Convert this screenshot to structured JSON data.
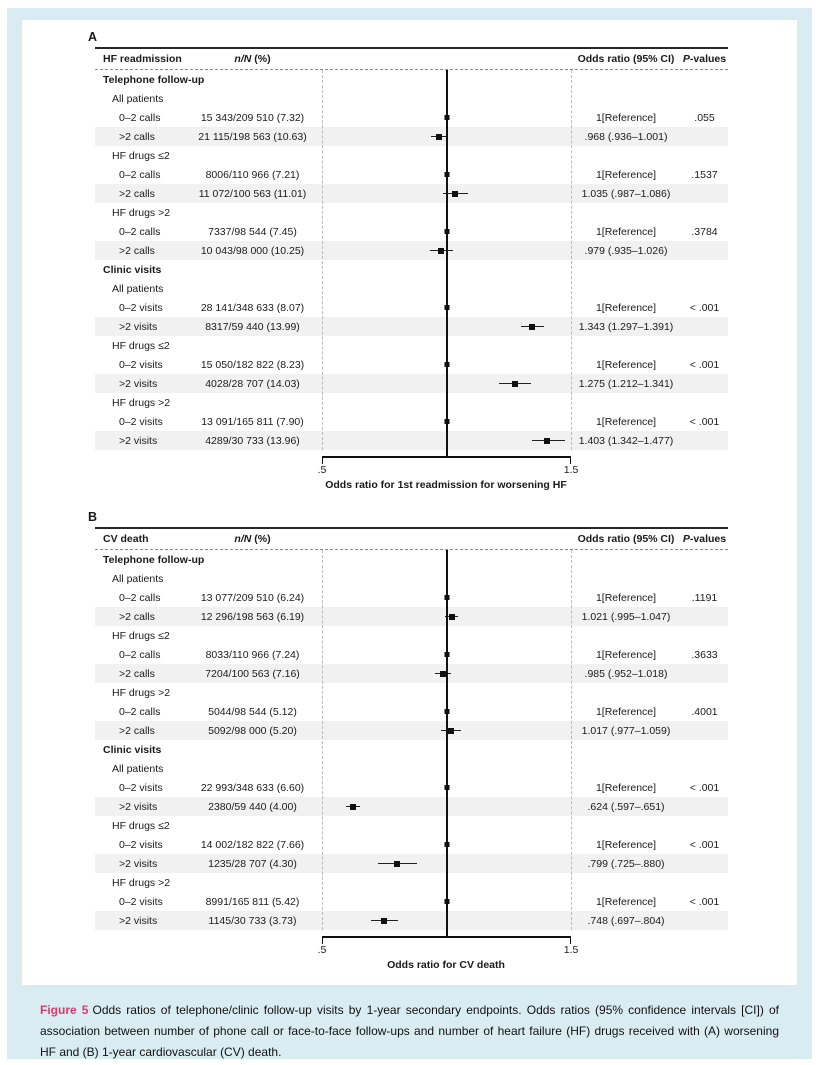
{
  "figure": {
    "caption_label": "Figure 5",
    "caption_text": "Odds ratios of telephone/clinic follow-up visits by 1-year secondary endpoints. Odds ratios (95% confidence intervals [CI]) of association between number of phone call or face-to-face follow-ups and number of heart failure (HF) drugs received with (A) worsening HF and (B) 1-year cardiovascular (CV) death."
  },
  "colors": {
    "frame_blue": "#d9ecf2",
    "caption_accent_pink": "#e4366e",
    "row_shade_gray": "#f1f1f1",
    "ink": "#1a1a1a"
  },
  "chart_data": [
    {
      "type": "forest",
      "panel_label": "A",
      "columns": {
        "endpoint": "HF readmission",
        "n_italic": "n/N",
        "n_rest": " (%)",
        "or": "Odds ratio (95% CI)",
        "p_italic": "P",
        "p_rest": "-values"
      },
      "xlabel": "Odds ratio for 1st readmission for worsening HF",
      "xlim": [
        0.5,
        1.5
      ],
      "ticks": [
        ".5",
        "1.5"
      ],
      "tick_values": [
        0.5,
        1.5
      ],
      "ref_value": 1.0,
      "rows": [
        {
          "type": "group",
          "label": "Telephone follow-up"
        },
        {
          "type": "subgroup",
          "label": "All patients"
        },
        {
          "type": "data",
          "label": "0–2 calls",
          "nN": "15 343/209 510 (7.32)",
          "est": 1.0,
          "ref": true,
          "or_text": "1[Reference]",
          "p": ".055"
        },
        {
          "type": "data",
          "label": ">2 calls",
          "nN": "21 115/198 563 (10.63)",
          "est": 0.968,
          "lo": 0.936,
          "hi": 1.001,
          "or_text": ".968 (.936–1.001)",
          "p": "",
          "shaded": true
        },
        {
          "type": "subgroup",
          "label": "HF drugs ≤2"
        },
        {
          "type": "data",
          "label": "0–2 calls",
          "nN": "8006/110 966 (7.21)",
          "est": 1.0,
          "ref": true,
          "or_text": "1[Reference]",
          "p": ".1537"
        },
        {
          "type": "data",
          "label": ">2 calls",
          "nN": "11 072/100 563 (11.01)",
          "est": 1.035,
          "lo": 0.987,
          "hi": 1.086,
          "or_text": "1.035 (.987–1.086)",
          "p": "",
          "shaded": true
        },
        {
          "type": "subgroup",
          "label": "HF drugs >2"
        },
        {
          "type": "data",
          "label": "0–2 calls",
          "nN": "7337/98 544 (7.45)",
          "est": 1.0,
          "ref": true,
          "or_text": "1[Reference]",
          "p": ".3784"
        },
        {
          "type": "data",
          "label": ">2 calls",
          "nN": "10 043/98 000 (10.25)",
          "est": 0.979,
          "lo": 0.935,
          "hi": 1.026,
          "or_text": ".979 (.935–1.026)",
          "p": "",
          "shaded": true
        },
        {
          "type": "group",
          "label": "Clinic visits"
        },
        {
          "type": "subgroup",
          "label": "All patients"
        },
        {
          "type": "data",
          "label": "0–2 visits",
          "nN": "28 141/348 633 (8.07)",
          "est": 1.0,
          "ref": true,
          "or_text": "1[Reference]",
          "p": "< .001"
        },
        {
          "type": "data",
          "label": ">2 visits",
          "nN": "8317/59 440 (13.99)",
          "est": 1.343,
          "lo": 1.297,
          "hi": 1.391,
          "or_text": "1.343 (1.297–1.391)",
          "p": "",
          "shaded": true
        },
        {
          "type": "subgroup",
          "label": "HF drugs ≤2"
        },
        {
          "type": "data",
          "label": "0–2 visits",
          "nN": "15 050/182 822 (8.23)",
          "est": 1.0,
          "ref": true,
          "or_text": "1[Reference]",
          "p": "< .001"
        },
        {
          "type": "data",
          "label": ">2 visits",
          "nN": "4028/28 707 (14.03)",
          "est": 1.275,
          "lo": 1.212,
          "hi": 1.341,
          "or_text": "1.275 (1.212–1.341)",
          "p": "",
          "shaded": true
        },
        {
          "type": "subgroup",
          "label": "HF drugs >2"
        },
        {
          "type": "data",
          "label": "0–2 visits",
          "nN": "13 091/165 811 (7.90)",
          "est": 1.0,
          "ref": true,
          "or_text": "1[Reference]",
          "p": "< .001"
        },
        {
          "type": "data",
          "label": ">2 visits",
          "nN": "4289/30 733 (13.96)",
          "est": 1.403,
          "lo": 1.342,
          "hi": 1.477,
          "or_text": "1.403 (1.342–1.477)",
          "p": "",
          "shaded": true
        }
      ]
    },
    {
      "type": "forest",
      "panel_label": "B",
      "columns": {
        "endpoint": "CV death",
        "n_italic": "n/N",
        "n_rest": " (%)",
        "or": "Odds ratio (95% CI)",
        "p_italic": "P",
        "p_rest": "-values"
      },
      "xlabel": "Odds ratio for CV death",
      "xlim": [
        0.5,
        1.5
      ],
      "ticks": [
        ".5",
        "1.5"
      ],
      "tick_values": [
        0.5,
        1.5
      ],
      "ref_value": 1.0,
      "rows": [
        {
          "type": "group",
          "label": "Telephone follow-up"
        },
        {
          "type": "subgroup",
          "label": "All patients"
        },
        {
          "type": "data",
          "label": "0–2 calls",
          "nN": "13 077/209 510 (6.24)",
          "est": 1.0,
          "ref": true,
          "or_text": "1[Reference]",
          "p": ".1191"
        },
        {
          "type": "data",
          "label": ">2 calls",
          "nN": "12 296/198 563 (6.19)",
          "est": 1.021,
          "lo": 0.995,
          "hi": 1.047,
          "or_text": "1.021 (.995–1.047)",
          "p": "",
          "shaded": true
        },
        {
          "type": "subgroup",
          "label": "HF drugs ≤2"
        },
        {
          "type": "data",
          "label": "0–2 calls",
          "nN": "8033/110 966 (7.24)",
          "est": 1.0,
          "ref": true,
          "or_text": "1[Reference]",
          "p": ".3633"
        },
        {
          "type": "data",
          "label": ">2 calls",
          "nN": "7204/100 563 (7.16)",
          "est": 0.985,
          "lo": 0.952,
          "hi": 1.018,
          "or_text": ".985 (.952–1.018)",
          "p": "",
          "shaded": true
        },
        {
          "type": "subgroup",
          "label": "HF drugs >2"
        },
        {
          "type": "data",
          "label": "0–2 calls",
          "nN": "5044/98 544 (5.12)",
          "est": 1.0,
          "ref": true,
          "or_text": "1[Reference]",
          "p": ".4001"
        },
        {
          "type": "data",
          "label": ">2 calls",
          "nN": "5092/98 000 (5.20)",
          "est": 1.017,
          "lo": 0.977,
          "hi": 1.059,
          "or_text": "1.017 (.977–1.059)",
          "p": "",
          "shaded": true
        },
        {
          "type": "group",
          "label": "Clinic visits"
        },
        {
          "type": "subgroup",
          "label": "All patients"
        },
        {
          "type": "data",
          "label": "0–2 visits",
          "nN": "22 993/348 633 (6.60)",
          "est": 1.0,
          "ref": true,
          "or_text": "1[Reference]",
          "p": "< .001"
        },
        {
          "type": "data",
          "label": ">2 visits",
          "nN": "2380/59 440 (4.00)",
          "est": 0.624,
          "lo": 0.597,
          "hi": 0.651,
          "or_text": ".624 (.597–.651)",
          "p": "",
          "shaded": true
        },
        {
          "type": "subgroup",
          "label": "HF drugs ≤2"
        },
        {
          "type": "data",
          "label": "0–2 visits",
          "nN": "14 002/182 822 (7.66)",
          "est": 1.0,
          "ref": true,
          "or_text": "1[Reference]",
          "p": "< .001"
        },
        {
          "type": "data",
          "label": ">2 visits",
          "nN": "1235/28 707 (4.30)",
          "est": 0.799,
          "lo": 0.725,
          "hi": 0.88,
          "or_text": ".799 (.725–.880)",
          "p": "",
          "shaded": true
        },
        {
          "type": "subgroup",
          "label": "HF drugs >2"
        },
        {
          "type": "data",
          "label": "0–2 visits",
          "nN": "8991/165 811 (5.42)",
          "est": 1.0,
          "ref": true,
          "or_text": "1[Reference]",
          "p": "< .001"
        },
        {
          "type": "data",
          "label": ">2 visits",
          "nN": "1145/30 733 (3.73)",
          "est": 0.748,
          "lo": 0.697,
          "hi": 0.804,
          "or_text": ".748 (.697–.804)",
          "p": "",
          "shaded": true
        }
      ]
    }
  ]
}
